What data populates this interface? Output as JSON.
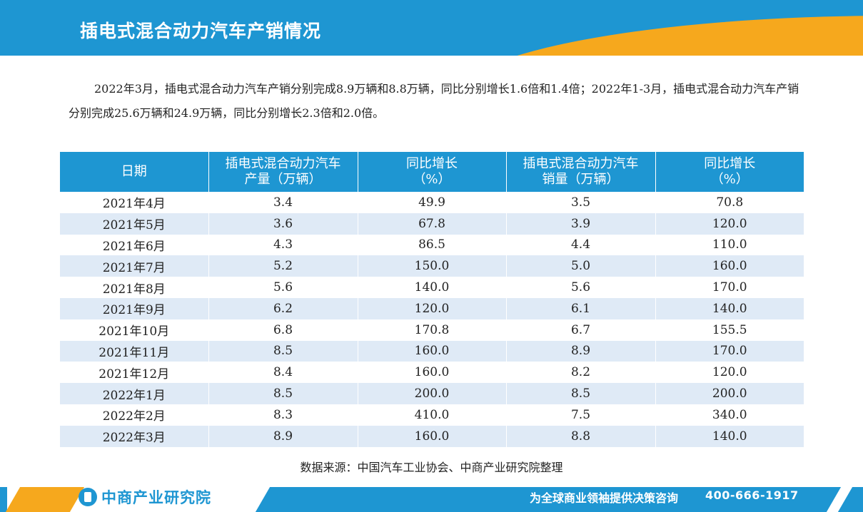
{
  "colors": {
    "primary_blue": "#1e96d2",
    "accent_orange": "#f6a81d",
    "row_stripe": "#dfeaf6"
  },
  "header": {
    "title": "插电式混合动力汽车产销情况"
  },
  "summary": "2022年3月，插电式混合动力汽车产销分别完成8.9万辆和8.8万辆，同比分别增长1.6倍和1.4倍；2022年1-3月，插电式混合动力汽车产销分别完成25.6万辆和24.9万辆，同比分别增长2.3倍和2.0倍。",
  "table": {
    "headers": [
      [
        "日期"
      ],
      [
        "插电式混合动力汽车",
        "产量（万辆）"
      ],
      [
        "同比增长",
        "（%）"
      ],
      [
        "插电式混合动力汽车",
        "销量（万辆）"
      ],
      [
        "同比增长",
        "（%）"
      ]
    ],
    "rows": [
      [
        "2021年4月",
        "3.4",
        "49.9",
        "3.5",
        "70.8"
      ],
      [
        "2021年5月",
        "3.6",
        "67.8",
        "3.9",
        "120.0"
      ],
      [
        "2021年6月",
        "4.3",
        "86.5",
        "4.4",
        "110.0"
      ],
      [
        "2021年7月",
        "5.2",
        "150.0",
        "5.0",
        "160.0"
      ],
      [
        "2021年8月",
        "5.6",
        "140.0",
        "5.6",
        "170.0"
      ],
      [
        "2021年9月",
        "6.2",
        "120.0",
        "6.1",
        "140.0"
      ],
      [
        "2021年10月",
        "6.8",
        "170.8",
        "6.7",
        "155.5"
      ],
      [
        "2021年11月",
        "8.5",
        "160.0",
        "8.9",
        "170.0"
      ],
      [
        "2021年12月",
        "8.4",
        "160.0",
        "8.2",
        "120.0"
      ],
      [
        "2022年1月",
        "8.5",
        "200.0",
        "8.5",
        "200.0"
      ],
      [
        "2022年2月",
        "8.3",
        "410.0",
        "7.5",
        "340.0"
      ],
      [
        "2022年3月",
        "8.9",
        "160.0",
        "8.8",
        "140.0"
      ]
    ]
  },
  "source": "数据来源：中国汽车工业协会、中商产业研究院整理",
  "footer": {
    "logo_text": "中商产业研究院",
    "slogan": "为全球商业领袖提供决策咨询",
    "phone": "400-666-1917"
  }
}
